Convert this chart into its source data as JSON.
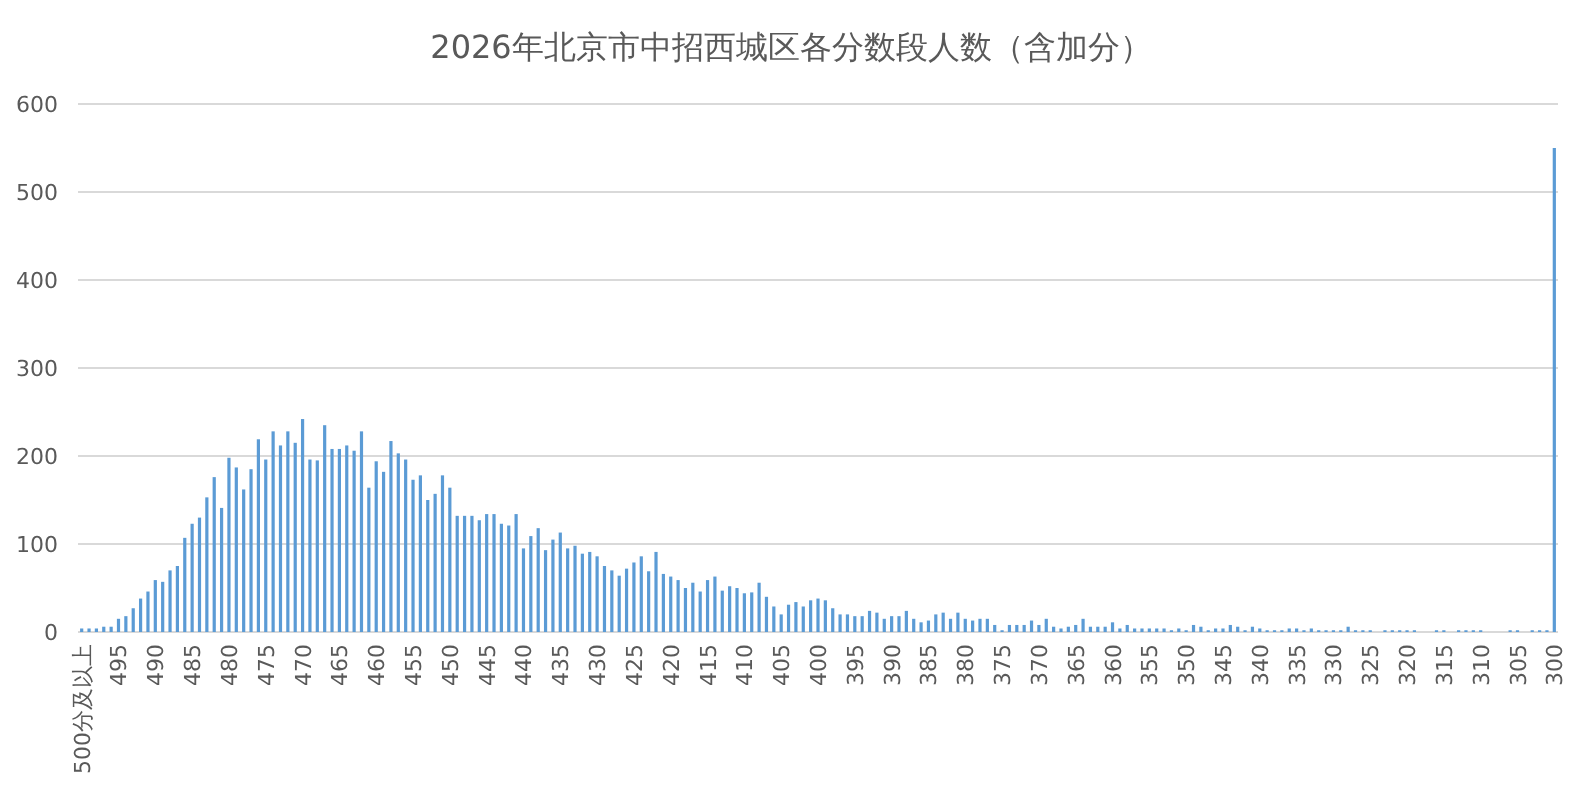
{
  "chart_data": {
    "type": "bar",
    "title": "2026年北京市中招西城区各分数段人数（含加分）",
    "categories": [
      "500分及以上",
      null,
      null,
      null,
      null,
      "495",
      null,
      null,
      null,
      null,
      "490",
      null,
      null,
      null,
      null,
      "485",
      null,
      null,
      null,
      null,
      "480",
      null,
      null,
      null,
      null,
      "475",
      null,
      null,
      null,
      null,
      "470",
      null,
      null,
      null,
      null,
      "465",
      null,
      null,
      null,
      null,
      "460",
      null,
      null,
      null,
      null,
      "455",
      null,
      null,
      null,
      null,
      "450",
      null,
      null,
      null,
      null,
      "445",
      null,
      null,
      null,
      null,
      "440",
      null,
      null,
      null,
      null,
      "435",
      null,
      null,
      null,
      null,
      "430",
      null,
      null,
      null,
      null,
      "425",
      null,
      null,
      null,
      null,
      "420",
      null,
      null,
      null,
      null,
      "415",
      null,
      null,
      null,
      null,
      "410",
      null,
      null,
      null,
      null,
      "405",
      null,
      null,
      null,
      null,
      "400",
      null,
      null,
      null,
      null,
      "395",
      null,
      null,
      null,
      null,
      "390",
      null,
      null,
      null,
      null,
      "385",
      null,
      null,
      null,
      null,
      "380",
      null,
      null,
      null,
      null,
      "375",
      null,
      null,
      null,
      null,
      "370",
      null,
      null,
      null,
      null,
      "365",
      null,
      null,
      null,
      null,
      "360",
      null,
      null,
      null,
      null,
      "355",
      null,
      null,
      null,
      null,
      "350",
      null,
      null,
      null,
      null,
      "345",
      null,
      null,
      null,
      null,
      "340",
      null,
      null,
      null,
      null,
      "335",
      null,
      null,
      null,
      null,
      "330",
      null,
      null,
      null,
      null,
      "325",
      null,
      null,
      null,
      null,
      "320",
      null,
      null,
      null,
      null,
      "315",
      null,
      null,
      null,
      null,
      "310",
      null,
      null,
      null,
      null,
      "305",
      null,
      null,
      null,
      null,
      "300"
    ],
    "values": [
      4,
      4,
      4,
      6,
      6,
      15,
      18,
      27,
      38,
      46,
      59,
      57,
      70,
      75,
      107,
      123,
      130,
      153,
      176,
      141,
      198,
      187,
      162,
      185,
      219,
      196,
      228,
      212,
      228,
      215,
      242,
      196,
      195,
      235,
      208,
      208,
      212,
      206,
      228,
      164,
      194,
      182,
      217,
      203,
      196,
      173,
      178,
      150,
      157,
      178,
      164,
      132,
      132,
      132,
      127,
      134,
      134,
      123,
      121,
      134,
      95,
      109,
      118,
      93,
      105,
      113,
      95,
      98,
      89,
      91,
      86,
      75,
      70,
      64,
      72,
      79,
      86,
      69,
      91,
      66,
      63,
      59,
      50,
      56,
      46,
      59,
      63,
      47,
      52,
      50,
      44,
      45,
      56,
      40,
      29,
      20,
      31,
      34,
      29,
      36,
      38,
      36,
      27,
      20,
      20,
      18,
      18,
      24,
      22,
      15,
      18,
      18,
      24,
      15,
      11,
      13,
      20,
      22,
      15,
      22,
      15,
      13,
      15,
      15,
      8,
      2,
      8,
      8,
      8,
      13,
      8,
      15,
      6,
      4,
      6,
      8,
      15,
      6,
      6,
      6,
      11,
      4,
      8,
      4,
      4,
      4,
      4,
      4,
      2,
      4,
      2,
      8,
      6,
      2,
      4,
      4,
      8,
      6,
      2,
      6,
      4,
      2,
      2,
      2,
      4,
      4,
      2,
      4,
      2,
      2,
      2,
      2,
      6,
      2,
      2,
      2,
      0,
      2,
      2,
      2,
      2,
      2,
      0,
      0,
      2,
      2,
      0,
      2,
      2,
      2,
      2,
      0,
      0,
      0,
      2,
      2,
      0,
      2,
      2,
      2,
      550
    ],
    "color": "#5b9bd5",
    "ylim": [
      0,
      600
    ],
    "yticks": [
      0,
      100,
      200,
      300,
      400,
      500,
      600
    ],
    "grid": "y"
  }
}
